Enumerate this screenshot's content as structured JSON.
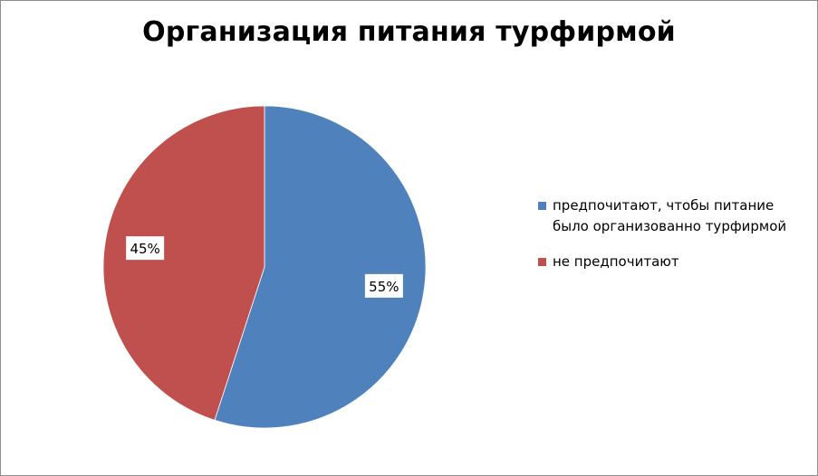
{
  "chart_data": {
    "type": "pie",
    "title": "Организация питания турфирмой",
    "slices": [
      {
        "label": "предпочитают, чтобы питание было организованно турфирмой",
        "value": 55,
        "value_label": "55%",
        "color": "#4f81bd"
      },
      {
        "label": "не предпочитают",
        "value": 45,
        "value_label": "45%",
        "color": "#c0504d"
      }
    ],
    "start_angle_deg": 0,
    "direction": "clockwise",
    "legend_position": "right",
    "data_labels": true
  }
}
